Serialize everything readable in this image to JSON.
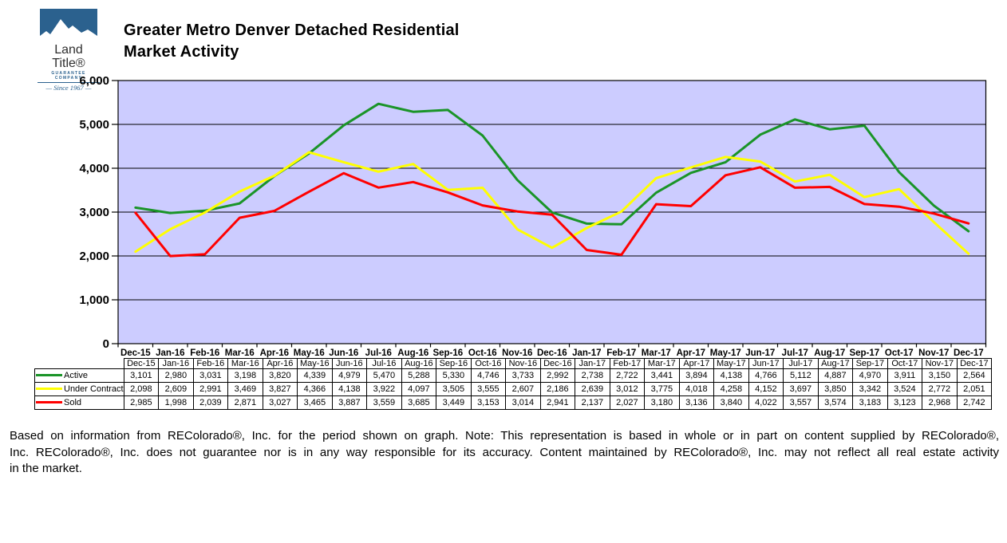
{
  "logo": {
    "name": "Land Title®",
    "subtitle": "GUARANTEE COMPANY",
    "tagline": "— Since 1967 —",
    "brand_blue": "#2b618e"
  },
  "title": {
    "line1": "Greater Metro Denver Detached Residential",
    "line2": "Market Activity"
  },
  "chart_data": {
    "type": "line",
    "title": "Greater Metro Denver Detached Residential Market Activity",
    "xlabel": "",
    "ylabel": "",
    "ylim": [
      0,
      6000
    ],
    "ytick_step": 1000,
    "ytick_labels": [
      "0",
      "1,000",
      "2,000",
      "3,000",
      "4,000",
      "5,000",
      "6,000"
    ],
    "grid": true,
    "plot_bg": "#ccccff",
    "grid_color": "#000000",
    "legend_position": "table-left",
    "categories": [
      "Dec-15",
      "Jan-16",
      "Feb-16",
      "Mar-16",
      "Apr-16",
      "May-16",
      "Jun-16",
      "Jul-16",
      "Aug-16",
      "Sep-16",
      "Oct-16",
      "Nov-16",
      "Dec-16",
      "Jan-17",
      "Feb-17",
      "Mar-17",
      "Apr-17",
      "May-17",
      "Jun-17",
      "Jul-17",
      "Aug-17",
      "Sep-17",
      "Oct-17",
      "Nov-17",
      "Dec-17"
    ],
    "series": [
      {
        "name": "Active",
        "color": "#1a9428",
        "values": [
          3101,
          2980,
          3031,
          3198,
          3820,
          4339,
          4979,
          5470,
          5288,
          5330,
          4746,
          3733,
          2992,
          2738,
          2722,
          3441,
          3894,
          4138,
          4766,
          5112,
          4887,
          4970,
          3911,
          3150,
          2564
        ]
      },
      {
        "name": "Under Contract",
        "color": "#ffff00",
        "values": [
          2098,
          2609,
          2991,
          3469,
          3827,
          4366,
          4138,
          3922,
          4097,
          3505,
          3555,
          2607,
          2186,
          2639,
          3012,
          3775,
          4018,
          4258,
          4152,
          3697,
          3850,
          3342,
          3524,
          2772,
          2051
        ]
      },
      {
        "name": "Sold",
        "color": "#ff0000",
        "values": [
          2985,
          1998,
          2039,
          2871,
          3027,
          3465,
          3887,
          3559,
          3685,
          3449,
          3153,
          3014,
          2941,
          2137,
          2027,
          3180,
          3136,
          3840,
          4022,
          3557,
          3574,
          3183,
          3123,
          2968,
          2742
        ]
      }
    ]
  },
  "disclaimer": {
    "lines": [
      "Based on information from REColorado®, Inc. for the period shown on graph. Note: This representation is based in whole or in part on content supplied by REColorado®,",
      "Inc. REColorado®, Inc. does not guarantee nor is in any way responsible for its accuracy. Content maintained by REColorado®, Inc. may not reflect all real estate activity",
      "in the market."
    ]
  }
}
